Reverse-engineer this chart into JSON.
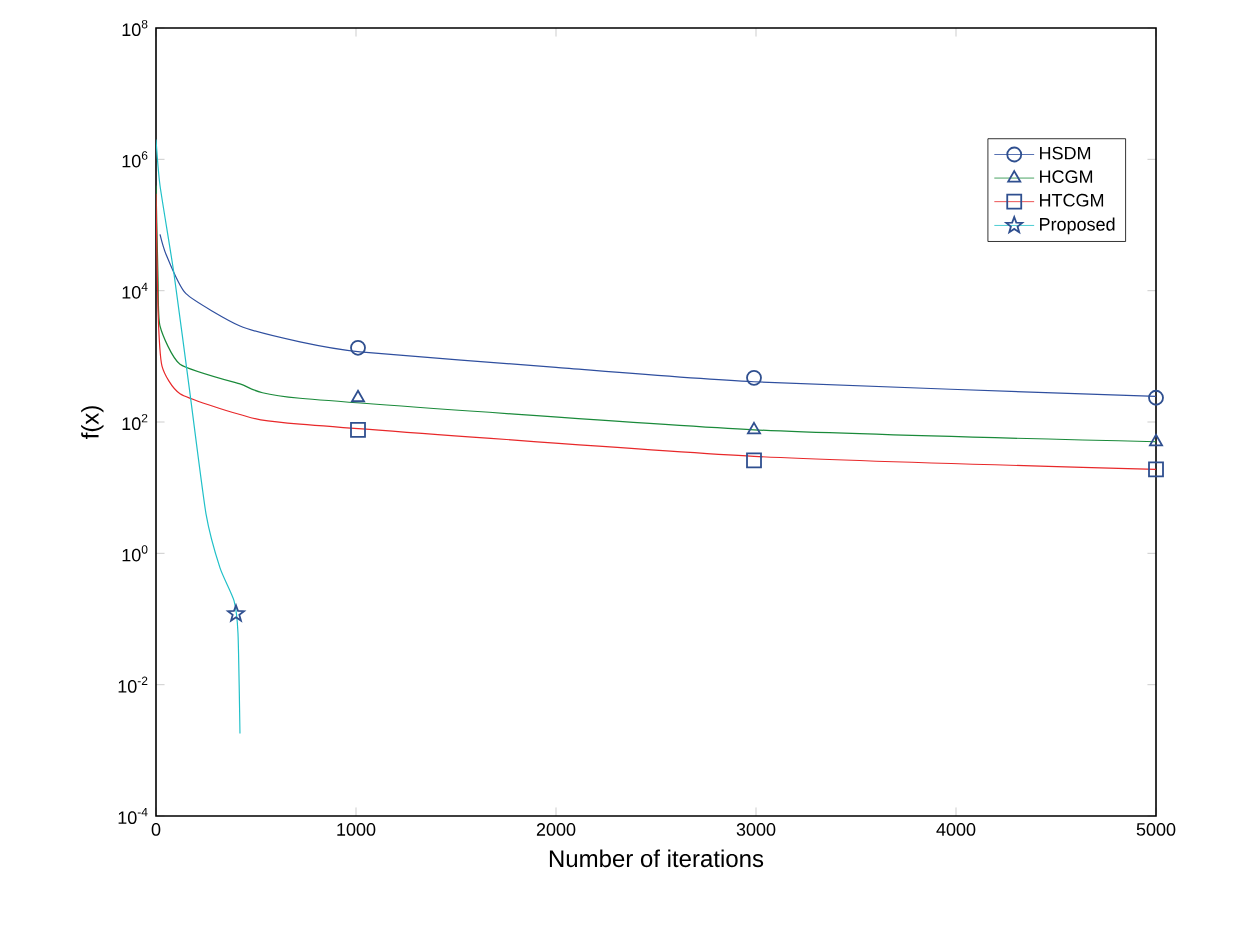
{
  "chart_data": {
    "type": "line",
    "xlabel": "Number of iterations",
    "ylabel": "f(x)",
    "log": "y",
    "xlim": [
      0,
      5000
    ],
    "ylim": [
      0.0001,
      100000000
    ],
    "xticks": [
      0,
      1000,
      2000,
      3000,
      4000,
      5000
    ],
    "yticks": [
      {
        "value": 0.0001,
        "label": "10$^{-4}$"
      },
      {
        "value": 0.01,
        "label": "10$^{-2}$"
      },
      {
        "value": 1,
        "label": "10$^{0}$"
      },
      {
        "value": 100,
        "label": "10$^{2}$"
      },
      {
        "value": 10000,
        "label": "10$^{4}$"
      },
      {
        "value": 1000000,
        "label": "10$^{6}$"
      },
      {
        "value": 100000000,
        "label": "10$^{8}$"
      }
    ],
    "legend": "top right",
    "grid": false,
    "series": [
      {
        "name": "HSDM",
        "color": "#2f4f9f",
        "x": [
          20,
          50,
          150,
          420,
          720,
          1020,
          2000,
          2990,
          5000
        ],
        "values": [
          72000,
          36000,
          9000,
          2900,
          1660,
          1170,
          680,
          410,
          245
        ]
      },
      {
        "name": "HCGM",
        "color": "#1a8a3a",
        "x": [
          0,
          10,
          20,
          120,
          420,
          720,
          2990,
          5000
        ],
        "values": [
          400000,
          16000,
          2900,
          760,
          380,
          230,
          76,
          50
        ]
      },
      {
        "name": "HTCGM",
        "color": "#e8282a",
        "x": [
          0,
          10,
          30,
          120,
          420,
          720,
          2990,
          5000
        ],
        "values": [
          300000,
          5000,
          710,
          270,
          130,
          93,
          30,
          19
        ]
      },
      {
        "name": "Proposed",
        "color": "#20c0c8",
        "x": [
          0,
          20,
          90,
          170,
          250,
          320,
          390,
          410,
          420
        ],
        "values": [
          2000000,
          400000,
          18000,
          270,
          4,
          0.6,
          0.19,
          0.06,
          0.0018
        ]
      },
      {
        "type": "scatter",
        "marker": "circle",
        "color": "#2f4f8f",
        "x": [
          1010,
          2990,
          5000
        ],
        "values": [
          1350,
          470,
          234
        ]
      },
      {
        "type": "scatter",
        "marker": "triangle",
        "color": "#2f4f8f",
        "x": [
          1010,
          2990,
          5000
        ],
        "values": [
          234,
          76,
          50
        ]
      },
      {
        "type": "scatter",
        "marker": "square",
        "color": "#2f4f8f",
        "x": [
          1010,
          2990,
          5000
        ],
        "values": [
          76,
          26,
          19
        ]
      },
      {
        "type": "scatter",
        "marker": "star",
        "color": "#2f4f8f",
        "x": [
          400
        ],
        "values": [
          0.12
        ]
      }
    ]
  }
}
